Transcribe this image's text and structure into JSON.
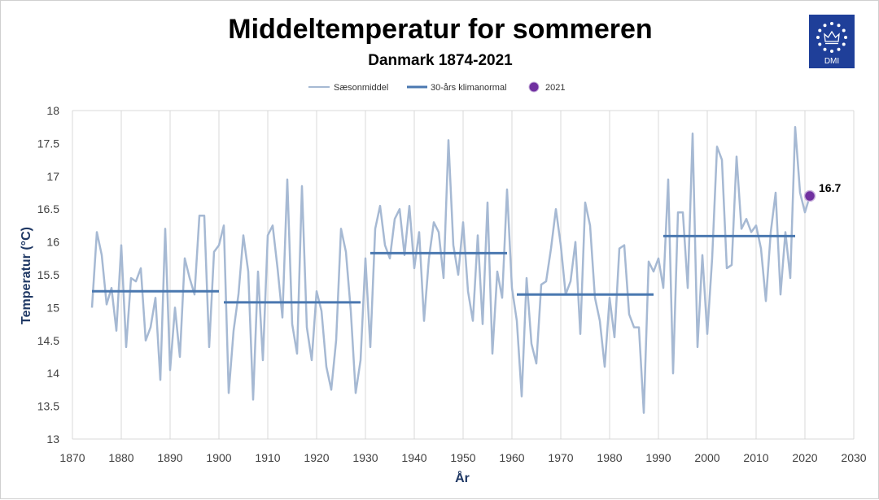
{
  "chart_data": {
    "type": "line",
    "title": "Middeltemperatur for sommeren",
    "subtitle": "Danmark 1874-2021",
    "xlabel": "År",
    "ylabel": "Temperatur (°C)",
    "xlim": [
      1870,
      2030
    ],
    "ylim": [
      13,
      18
    ],
    "xticks": [
      1870,
      1880,
      1890,
      1900,
      1910,
      1920,
      1930,
      1940,
      1950,
      1960,
      1970,
      1980,
      1990,
      2000,
      2010,
      2020,
      2030
    ],
    "yticks": [
      "13",
      "13.5",
      "14",
      "14.5",
      "15",
      "15.5",
      "16",
      "16.5",
      "17",
      "17.5",
      "18"
    ],
    "grid": "vertical",
    "legend_position": "top",
    "colors": {
      "season": "#a6b9d3",
      "normal": "#4a78b0",
      "point": "#7030a0",
      "grid": "#d9d9d9",
      "axis_label": "#1f3864",
      "logo_bg": "#1f3f99"
    },
    "legend": [
      {
        "label": "Sæsonmiddel",
        "kind": "thin-line"
      },
      {
        "label": "30-års klimanormal",
        "kind": "thick-line"
      },
      {
        "label": "2021",
        "kind": "marker"
      }
    ],
    "series": [
      {
        "name": "Sæsonmiddel",
        "x_start": 1874,
        "values": [
          15.0,
          16.15,
          15.8,
          15.05,
          15.3,
          14.65,
          15.95,
          14.4,
          15.45,
          15.4,
          15.6,
          14.5,
          14.7,
          15.15,
          13.9,
          16.2,
          14.05,
          15.0,
          14.25,
          15.75,
          15.45,
          15.2,
          16.4,
          16.4,
          14.4,
          15.85,
          15.95,
          16.25,
          13.7,
          14.65,
          15.2,
          16.1,
          15.55,
          13.6,
          15.55,
          14.2,
          16.1,
          16.25,
          15.6,
          14.85,
          16.95,
          14.75,
          14.3,
          16.85,
          14.7,
          14.2,
          15.25,
          14.95,
          14.1,
          13.75,
          14.5,
          16.2,
          15.85,
          14.95,
          13.7,
          14.2,
          15.75,
          14.4,
          16.2,
          16.55,
          15.95,
          15.75,
          16.35,
          16.5,
          15.8,
          16.55,
          15.6,
          16.15,
          14.8,
          15.75,
          16.3,
          16.15,
          15.45,
          17.55,
          15.95,
          15.5,
          16.3,
          15.25,
          14.8,
          16.1,
          14.75,
          16.6,
          14.3,
          15.55,
          15.15,
          16.8,
          15.3,
          14.8,
          13.65,
          15.45,
          14.45,
          14.15,
          15.35,
          15.4,
          15.9,
          16.5,
          15.95,
          15.2,
          15.4,
          16.0,
          14.6,
          16.6,
          16.25,
          15.15,
          14.8,
          14.1,
          15.15,
          14.55,
          15.9,
          15.95,
          14.9,
          14.7,
          14.7,
          13.4,
          15.7,
          15.55,
          15.75,
          15.3,
          16.95,
          14.0,
          16.45,
          16.45,
          15.3,
          17.65,
          14.4,
          15.8,
          14.6,
          15.75,
          17.45,
          17.25,
          15.6,
          15.65,
          17.3,
          16.2,
          16.35,
          16.15,
          16.25,
          15.9,
          15.1,
          16.15,
          16.75,
          15.2,
          16.15,
          15.45,
          17.75,
          16.75,
          16.45,
          16.7
        ]
      },
      {
        "name": "30-års klimanormal",
        "segments": [
          {
            "from": 1874,
            "to": 1900,
            "value": 15.25
          },
          {
            "from": 1901,
            "to": 1929,
            "value": 15.08
          },
          {
            "from": 1931,
            "to": 1959,
            "value": 15.83
          },
          {
            "from": 1961,
            "to": 1989,
            "value": 15.2
          },
          {
            "from": 1991,
            "to": 2018,
            "value": 16.09
          }
        ]
      },
      {
        "name": "2021",
        "points": [
          {
            "x": 2021,
            "y": 16.7
          }
        ]
      }
    ],
    "annotations": [
      {
        "x": 2021,
        "y": 16.7,
        "text": "16.7"
      }
    ]
  },
  "logo": {
    "text": "DMI"
  }
}
